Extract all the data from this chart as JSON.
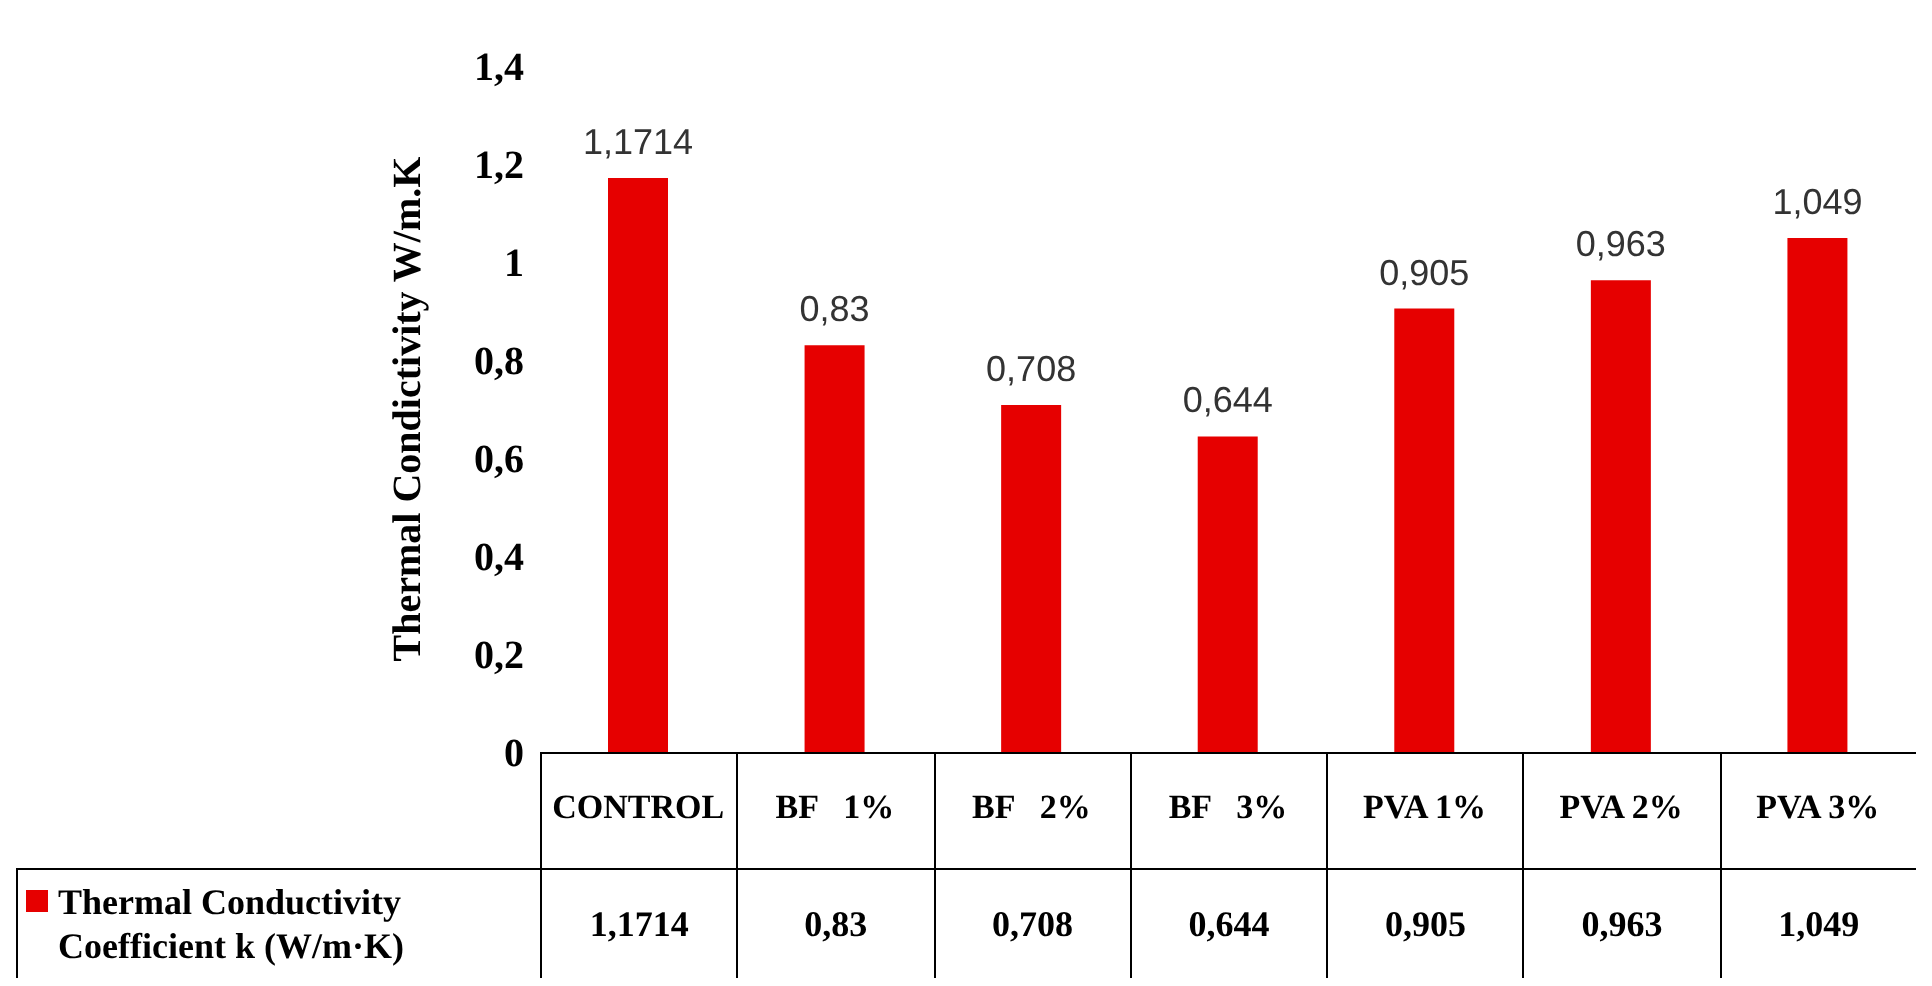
{
  "chart_data": {
    "type": "bar",
    "ylabel": "Thermal Condictivity W/m.K",
    "categories": [
      "CONTROL",
      "BF   1%",
      "BF   2%",
      "BF   3%",
      "PVA 1%",
      "PVA 2%",
      "PVA 3%"
    ],
    "series": [
      {
        "name": "Thermal Conductivity Coefficient k (W/m·K)",
        "color": "#e60000",
        "values": [
          1.1714,
          0.83,
          0.708,
          0.644,
          0.905,
          0.963,
          1.049
        ],
        "value_labels": [
          "1,1714",
          "0,83",
          "0,708",
          "0,644",
          "0,905",
          "0,963",
          "1,049"
        ]
      }
    ],
    "ylim": [
      0,
      1.4
    ],
    "yticks": [
      {
        "value": 0,
        "label": "0"
      },
      {
        "value": 0.2,
        "label": "0,2"
      },
      {
        "value": 0.4,
        "label": "0,4"
      },
      {
        "value": 0.6,
        "label": "0,6"
      },
      {
        "value": 0.8,
        "label": "0,8"
      },
      {
        "value": 1,
        "label": "1"
      },
      {
        "value": 1.2,
        "label": "1,2"
      },
      {
        "value": 1.4,
        "label": "1,4"
      }
    ],
    "legend": "bottom left"
  }
}
